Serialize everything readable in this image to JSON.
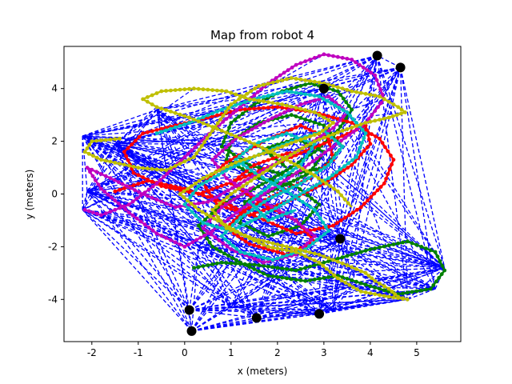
{
  "chart_data": {
    "type": "line",
    "title": "Map from robot 4",
    "xlabel": "x (meters)",
    "ylabel": "y (meters)",
    "xlim": [
      -2.6,
      5.95
    ],
    "ylim": [
      -5.6,
      5.6
    ],
    "xticks": [
      -2,
      -1,
      0,
      1,
      2,
      3,
      4,
      5
    ],
    "yticks": [
      -4,
      -2,
      0,
      2,
      4
    ],
    "grid": false,
    "legend": "none",
    "colors": {
      "blue": "#0000ff",
      "green": "#008000",
      "red": "#ff0000",
      "cyan": "#00bfbf",
      "magenta": "#bf00bf",
      "yellow": "#bfbf00",
      "black": "#000000"
    },
    "landmarks": {
      "color": "black",
      "x": [
        4.15,
        4.65,
        0.1,
        0.15,
        1.55,
        2.9,
        3.35,
        3.0
      ],
      "y": [
        5.25,
        4.8,
        -4.4,
        -5.2,
        -4.7,
        -4.55,
        -1.7,
        4.0
      ]
    },
    "series": [
      {
        "color": "green",
        "style": "dotted-solid",
        "x": [
          0.2,
          0.8,
          1.6,
          2.4,
          3.2,
          4.0,
          4.8,
          5.4,
          5.6,
          5.3,
          4.6,
          4.0,
          3.3,
          2.6,
          1.8,
          1.2,
          0.6,
          0.3,
          0.8,
          1.5,
          2.2,
          2.8,
          3.3,
          3.6,
          3.3,
          2.7,
          2.1,
          1.5,
          1.0,
          0.8,
          1.4,
          2.2,
          3.0,
          3.4,
          3.0,
          2.3,
          1.6,
          1.0,
          0.9,
          1.6,
          2.4,
          2.9,
          2.5,
          1.8,
          1.2,
          1.3,
          2.0,
          2.7,
          3.0,
          2.4,
          1.7,
          2.2
        ],
        "y": [
          -2.8,
          -2.6,
          -2.7,
          -2.9,
          -2.5,
          -2.1,
          -1.8,
          -2.2,
          -2.9,
          -3.6,
          -3.8,
          -3.5,
          -3.1,
          -3.3,
          -3.1,
          -2.6,
          -2.0,
          -1.2,
          -0.4,
          0.2,
          0.9,
          1.6,
          2.4,
          3.2,
          3.9,
          4.2,
          3.9,
          3.4,
          2.7,
          1.8,
          1.1,
          0.7,
          1.0,
          1.8,
          2.6,
          3.0,
          2.7,
          2.0,
          1.3,
          0.6,
          0.3,
          -0.4,
          -1.2,
          -1.6,
          -1.1,
          -0.3,
          0.2,
          0.8,
          1.6,
          2.1,
          1.7,
          1.0
        ]
      },
      {
        "color": "red",
        "style": "dotted-solid",
        "x": [
          -1.5,
          -0.8,
          0.0,
          0.8,
          1.6,
          2.4,
          3.2,
          3.8,
          4.3,
          4.5,
          4.2,
          3.6,
          2.8,
          2.0,
          1.2,
          0.5,
          -0.2,
          -0.9,
          -1.3,
          -1.1,
          -0.5,
          0.3,
          1.1,
          1.9,
          2.7,
          3.4,
          3.9,
          4.0,
          3.6,
          3.0,
          2.2,
          1.4,
          0.7,
          0.4,
          0.9,
          1.7,
          2.5,
          3.1,
          3.2,
          2.7,
          2.0,
          1.3,
          0.9,
          1.4,
          2.2,
          2.8,
          2.4,
          1.6,
          1.0,
          1.5,
          2.3
        ],
        "y": [
          0.1,
          0.5,
          0.2,
          -0.3,
          -0.9,
          -1.5,
          -1.2,
          -0.5,
          0.4,
          1.3,
          2.1,
          2.7,
          3.1,
          3.3,
          3.2,
          2.9,
          2.6,
          2.3,
          1.6,
          0.8,
          0.3,
          0.0,
          0.5,
          1.1,
          1.7,
          2.2,
          2.6,
          1.9,
          1.1,
          0.4,
          -0.3,
          -0.8,
          -0.4,
          0.4,
          1.2,
          2.0,
          2.6,
          2.1,
          1.3,
          0.6,
          0.0,
          -0.6,
          -1.3,
          -1.9,
          -2.3,
          -1.8,
          -1.0,
          -0.3,
          0.4,
          1.1,
          1.6
        ]
      },
      {
        "color": "magenta",
        "style": "dotted-solid",
        "x": [
          -2.15,
          -1.8,
          -1.2,
          -0.6,
          0.0,
          0.6,
          1.2,
          1.8,
          2.4,
          3.0,
          3.6,
          4.1,
          4.3,
          3.9,
          3.2,
          2.5,
          1.8,
          1.2,
          0.6,
          0.0,
          -0.6,
          -1.2,
          -1.8,
          -2.1,
          -1.6,
          -0.9,
          -0.2,
          0.5,
          1.2,
          1.9,
          2.6,
          3.2,
          3.5,
          3.1,
          2.5,
          1.8,
          1.1,
          0.6,
          0.9,
          1.6,
          2.3,
          2.8,
          2.4,
          1.7,
          1.0,
          0.4,
          0.8,
          1.5
        ],
        "y": [
          -0.6,
          -0.8,
          -0.4,
          0.4,
          1.4,
          2.4,
          3.3,
          4.2,
          4.9,
          5.3,
          5.1,
          4.5,
          3.6,
          2.7,
          1.8,
          0.9,
          0.1,
          -0.6,
          -1.4,
          -2.0,
          -1.5,
          -0.7,
          0.2,
          1.0,
          0.6,
          0.0,
          -0.5,
          -0.3,
          0.4,
          1.1,
          1.8,
          2.5,
          3.1,
          3.7,
          3.4,
          2.8,
          2.1,
          1.3,
          0.6,
          -0.2,
          -0.9,
          -1.6,
          -2.3,
          -2.6,
          -2.1,
          -1.3,
          -0.5,
          0.3
        ]
      },
      {
        "color": "cyan",
        "style": "dotted-solid",
        "x": [
          -0.6,
          0.1,
          0.8,
          1.5,
          2.2,
          2.9,
          3.5,
          3.9,
          3.7,
          3.1,
          2.4,
          1.7,
          1.0,
          0.4,
          0.0,
          0.3,
          0.9,
          1.6,
          2.3,
          3.0,
          3.4,
          3.1,
          2.5,
          1.8,
          1.2,
          0.8,
          1.2,
          1.9,
          2.6,
          3.1,
          2.8,
          2.2,
          1.6,
          1.1,
          1.5,
          2.2,
          2.8,
          2.5,
          1.9,
          1.4,
          1.8,
          2.4
        ],
        "y": [
          2.3,
          2.7,
          3.2,
          3.6,
          3.9,
          3.7,
          3.1,
          2.3,
          1.4,
          0.6,
          -0.1,
          -0.8,
          -1.4,
          -1.1,
          -0.4,
          0.3,
          0.9,
          1.5,
          2.0,
          2.4,
          1.8,
          1.1,
          0.4,
          -0.2,
          -0.9,
          -1.6,
          -2.2,
          -2.5,
          -2.1,
          -1.4,
          -0.6,
          0.1,
          0.7,
          1.3,
          1.9,
          2.3,
          1.9,
          1.1,
          0.4,
          -0.3,
          -1.0,
          -0.6
        ]
      },
      {
        "color": "yellow",
        "style": "dotted-solid",
        "x": [
          -1.4,
          -2.0,
          -2.15,
          -1.8,
          -1.0,
          -0.4,
          0.2,
          0.6,
          1.0,
          1.6,
          2.3,
          3.0,
          3.6,
          4.2,
          4.6,
          4.75,
          4.4,
          3.9,
          3.4,
          2.8,
          2.2,
          1.6,
          1.0,
          0.6,
          0.9,
          1.5,
          2.2,
          2.9,
          3.5,
          3.9,
          4.1,
          4.4,
          4.6,
          4.8,
          4.4,
          3.8,
          3.3,
          2.9,
          2.4,
          1.8,
          1.3,
          0.8,
          0.3,
          -0.1,
          0.4,
          1.1,
          1.8,
          2.4,
          2.9,
          3.2,
          2.8,
          2.1,
          1.4,
          0.9,
          0.2,
          -0.5,
          -0.9,
          -0.6,
          0.1,
          0.8,
          1.5,
          2.2,
          2.8,
          3.3,
          3.6
        ],
        "y": [
          2.1,
          2.0,
          1.6,
          1.3,
          1.0,
          0.9,
          1.4,
          2.4,
          3.4,
          4.1,
          4.4,
          4.2,
          3.9,
          3.7,
          3.3,
          3.1,
          2.9,
          2.7,
          2.4,
          2.0,
          1.4,
          0.7,
          0.0,
          -0.6,
          -1.3,
          -1.7,
          -2.0,
          -2.3,
          -2.7,
          -3.0,
          -3.3,
          -3.6,
          -3.9,
          -4.0,
          -3.9,
          -3.7,
          -3.2,
          -2.6,
          -2.2,
          -2.0,
          -1.6,
          -1.1,
          -0.6,
          0.0,
          0.6,
          1.2,
          1.6,
          2.0,
          2.3,
          2.7,
          3.1,
          3.4,
          3.6,
          3.9,
          4.0,
          3.9,
          3.6,
          3.3,
          2.9,
          2.4,
          1.9,
          1.3,
          0.7,
          0.1,
          -0.5
        ]
      }
    ],
    "blue_dashed_fill": {
      "color": "blue",
      "style": "dashed",
      "x": [
        -2.2,
        0.1,
        0.15,
        1.55,
        2.9,
        3.35,
        4.65,
        4.15,
        3.0,
        -0.6,
        -2.1,
        -2.2,
        0.3,
        1.9,
        3.6,
        5.6,
        5.4,
        4.8,
        3.2,
        1.0,
        -1.5
      ],
      "y": [
        2.2,
        -4.4,
        -5.2,
        -4.7,
        -4.55,
        -1.7,
        4.8,
        5.25,
        4.0,
        3.2,
        0.1,
        -0.6,
        -2.0,
        -3.1,
        -3.5,
        -2.8,
        -3.6,
        -4.0,
        -4.4,
        -4.3,
        1.9
      ]
    }
  }
}
